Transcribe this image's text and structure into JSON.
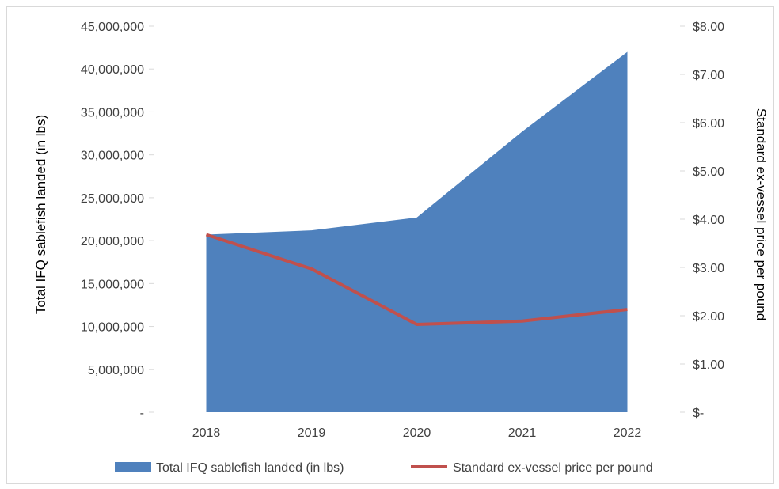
{
  "chart_data": {
    "type": "area",
    "x": [
      "2018",
      "2019",
      "2020",
      "2021",
      "2022"
    ],
    "series": [
      {
        "name": "Total IFQ sablefish landed (in lbs)",
        "type": "area",
        "axis": "left",
        "color": "#4f81bd",
        "values": [
          20700000,
          21200000,
          22700000,
          32700000,
          42000000
        ]
      },
      {
        "name": "Standard ex-vessel price per pound",
        "type": "line",
        "axis": "right",
        "color": "#c0504d",
        "values": [
          3.68,
          2.97,
          1.82,
          1.89,
          2.13
        ]
      }
    ],
    "ylabel": "Total IFQ sablefish landed (in lbs)",
    "y2label": "Standard ex-vessel price per pound",
    "ylim": [
      0,
      45000000
    ],
    "y2lim": [
      0,
      8
    ],
    "yticks": [
      "-",
      "5,000,000",
      "10,000,000",
      "15,000,000",
      "20,000,000",
      "25,000,000",
      "30,000,000",
      "35,000,000",
      "40,000,000",
      "45,000,000"
    ],
    "y2ticks": [
      "$-",
      "$1.00",
      "$2.00",
      "$3.00",
      "$4.00",
      "$5.00",
      "$6.00",
      "$7.00",
      "$8.00"
    ],
    "grid": false,
    "legend": "bottom"
  }
}
